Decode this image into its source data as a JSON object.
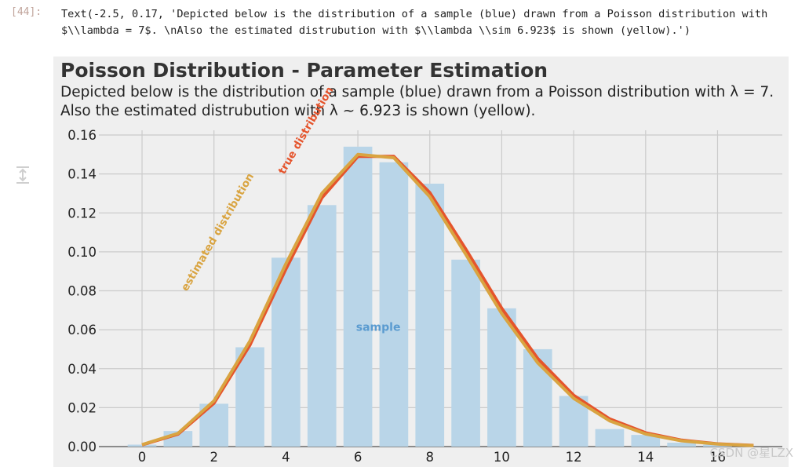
{
  "cell": {
    "prompt": "[44]:",
    "output_text": "Text(-2.5, 0.17, 'Depicted below is the distribution of a sample (blue) drawn from a Poisson distribution with $\\\\lambda = 7$. \\nAlso the estimated distrubution with $\\\\lambda \\\\sim 6.923$ is shown (yellow).')"
  },
  "watermark": "CSDN @星LZX",
  "colors": {
    "figure_bg": "#efefef",
    "sample_bar": "#b9d5e8",
    "true_line": "#e5542c",
    "estimated_line": "#d9a441",
    "sample_label": "#5a9bd0",
    "grid": "#cbcbcb"
  },
  "chart_data": {
    "type": "bar",
    "title": "Poisson Distribution - Parameter Estimation",
    "subtitle_line1": "Depicted below is the distribution of a sample (blue) drawn from a Poisson distribution with λ = 7.",
    "subtitle_line2": "Also the estimated distrubution with λ ~ 6.923 is shown (yellow).",
    "xlim": [
      -1.2,
      17.8
    ],
    "ylim": [
      0,
      0.16
    ],
    "x_ticks": [
      0,
      2,
      4,
      6,
      8,
      10,
      12,
      14,
      16
    ],
    "y_ticks": [
      0.0,
      0.02,
      0.04,
      0.06,
      0.08,
      0.1,
      0.12,
      0.14,
      0.16
    ],
    "grid": true,
    "x": [
      0,
      1,
      2,
      3,
      4,
      5,
      6,
      7,
      8,
      9,
      10,
      11,
      12,
      13,
      14,
      15,
      16,
      17
    ],
    "series": [
      {
        "name": "sample",
        "kind": "bar",
        "values": [
          0.001,
          0.008,
          0.022,
          0.051,
          0.097,
          0.124,
          0.154,
          0.146,
          0.135,
          0.096,
          0.071,
          0.05,
          0.026,
          0.009,
          0.006,
          0.002,
          0.001,
          0.0
        ]
      },
      {
        "name": "true distribution",
        "kind": "line",
        "values": [
          0.0009,
          0.0064,
          0.0223,
          0.0521,
          0.0912,
          0.1277,
          0.149,
          0.149,
          0.1304,
          0.1014,
          0.071,
          0.0452,
          0.0263,
          0.0142,
          0.0071,
          0.0033,
          0.0014,
          0.0006
        ]
      },
      {
        "name": "estimated distribution",
        "kind": "line",
        "values": [
          0.001,
          0.0068,
          0.0235,
          0.0542,
          0.0939,
          0.13,
          0.15,
          0.1483,
          0.1283,
          0.0987,
          0.0683,
          0.043,
          0.0248,
          0.0132,
          0.0065,
          0.003,
          0.0013,
          0.0005
        ]
      }
    ],
    "annotations": {
      "sample": "sample",
      "true": "true distribution",
      "estimated": "estimated distribution"
    }
  }
}
